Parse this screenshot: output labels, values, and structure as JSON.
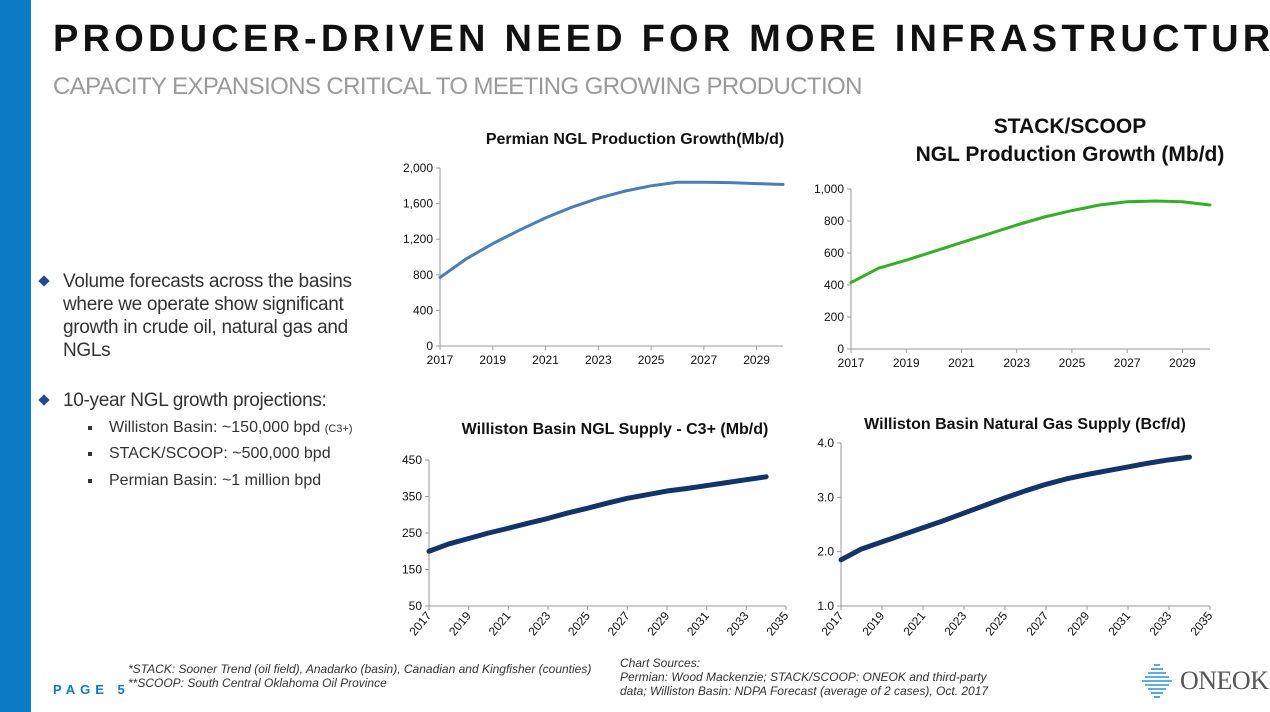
{
  "header": {
    "title": "PRODUCER-DRIVEN NEED FOR MORE INFRASTRUCTURE",
    "subtitle": "CAPACITY EXPANSIONS CRITICAL TO MEETING GROWING PRODUCTION"
  },
  "bullets": [
    {
      "text": "Volume forecasts across the basins where we operate show significant growth in crude oil, natural gas and NGLs"
    },
    {
      "text": "10-year NGL growth projections:"
    }
  ],
  "sub_bullets": [
    {
      "text": "Williston Basin: ~150,000 bpd",
      "note": "(C3+)"
    },
    {
      "text": "STACK/SCOOP: ~500,000 bpd",
      "note": ""
    },
    {
      "text": "Permian Basin: ~1 million bpd",
      "note": ""
    }
  ],
  "colors": {
    "accent": "#0b7bc6",
    "permian": "#4a7ebb",
    "stack": "#33b024",
    "williston": "#13346a"
  },
  "chart_data": [
    {
      "type": "line",
      "title": "Permian NGL Production Growth(Mb/d)",
      "x": [
        2017,
        2018,
        2019,
        2020,
        2021,
        2022,
        2023,
        2024,
        2025,
        2026,
        2027,
        2028,
        2029,
        2030
      ],
      "series": [
        {
          "values": [
            770,
            980,
            1150,
            1300,
            1440,
            1560,
            1660,
            1740,
            1800,
            1840,
            1840,
            1835,
            1825,
            1815
          ]
        }
      ],
      "xlim": [
        2017,
        2030
      ],
      "xticks": [
        "2017",
        "2019",
        "2021",
        "2023",
        "2025",
        "2027",
        "2029"
      ],
      "ylim": [
        0,
        2000
      ],
      "yticks": [
        "0",
        "400",
        "800",
        "1,200",
        "1,600",
        "2,000"
      ],
      "color": "#4a7ebb",
      "grid": false
    },
    {
      "type": "line",
      "title": "STACK/SCOOP",
      "title_line2": "NGL Production Growth (Mb/d)",
      "x": [
        2017,
        2018,
        2019,
        2020,
        2021,
        2022,
        2023,
        2024,
        2025,
        2026,
        2027,
        2028,
        2029,
        2030
      ],
      "series": [
        {
          "values": [
            415,
            505,
            555,
            610,
            665,
            720,
            775,
            825,
            865,
            900,
            920,
            925,
            920,
            900
          ]
        }
      ],
      "xlim": [
        2017,
        2030
      ],
      "xticks": [
        "2017",
        "2019",
        "2021",
        "2023",
        "2025",
        "2027",
        "2029"
      ],
      "ylim": [
        0,
        1000
      ],
      "yticks": [
        "0",
        "200",
        "400",
        "600",
        "800",
        "1,000"
      ],
      "color": "#33b024",
      "grid": false
    },
    {
      "type": "line",
      "title": "Williston Basin NGL Supply - C3+ (Mb/d)",
      "x": [
        2017,
        2018,
        2019,
        2020,
        2021,
        2022,
        2023,
        2024,
        2025,
        2026,
        2027,
        2028,
        2029,
        2030,
        2031,
        2032,
        2033,
        2034
      ],
      "series": [
        {
          "values": [
            200,
            220,
            235,
            250,
            263,
            277,
            290,
            305,
            318,
            332,
            345,
            355,
            365,
            372,
            380,
            388,
            396,
            404
          ]
        }
      ],
      "xlim": [
        2017,
        2035
      ],
      "xticks": [
        "2017",
        "2019",
        "2021",
        "2023",
        "2025",
        "2027",
        "2029",
        "2031",
        "2033",
        "2035"
      ],
      "ylim": [
        50,
        450
      ],
      "yticks": [
        "50",
        "150",
        "250",
        "350",
        "450"
      ],
      "color": "#13346a",
      "grid": false
    },
    {
      "type": "line",
      "title": "Williston Basin Natural Gas Supply (Bcf/d)",
      "x": [
        2017,
        2018,
        2019,
        2020,
        2021,
        2022,
        2023,
        2024,
        2025,
        2026,
        2027,
        2028,
        2029,
        2030,
        2031,
        2032,
        2033,
        2034
      ],
      "series": [
        {
          "values": [
            1.85,
            2.05,
            2.18,
            2.31,
            2.44,
            2.57,
            2.71,
            2.85,
            2.99,
            3.12,
            3.24,
            3.34,
            3.42,
            3.49,
            3.56,
            3.63,
            3.69,
            3.74
          ]
        }
      ],
      "xlim": [
        2017,
        2035
      ],
      "xticks": [
        "2017",
        "2019",
        "2021",
        "2023",
        "2025",
        "2027",
        "2029",
        "2031",
        "2033",
        "2035"
      ],
      "ylim": [
        1.0,
        4.0
      ],
      "yticks": [
        "1.0",
        "2.0",
        "3.0",
        "4.0"
      ],
      "color": "#13346a",
      "grid": false
    }
  ],
  "footer": {
    "page": "PAGE 5",
    "note1": "*STACK: Sooner Trend (oil field), Anadarko (basin), Canadian and Kingfisher (counties)",
    "note2": "**SCOOP: South Central Oklahoma Oil Province",
    "sources_label": "Chart Sources:",
    "sources1": "Permian: Wood Mackenzie; STACK/SCOOP: ONEOK  and third-party",
    "sources2": "data; Williston Basin: NDPA Forecast (average of 2 cases), Oct. 2017",
    "logo": "ONEOK"
  }
}
